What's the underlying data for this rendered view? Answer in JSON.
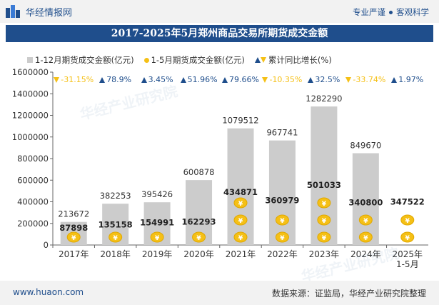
{
  "header": {
    "brand": "华经情报网",
    "tagline_left": "专业严谨",
    "tagline_right": "客观科学"
  },
  "chart_data": {
    "type": "bar",
    "title": "2017-2025年5月郑州商品交易所期货成交金额",
    "categories": [
      "2017年",
      "2018年",
      "2019年",
      "2020年",
      "2021年",
      "2022年",
      "2023年",
      "2024年",
      "2025年\n1-5月"
    ],
    "series": [
      {
        "name": "1-12月期货成交金额(亿元)",
        "color": "#cccccc",
        "values": [
          213672,
          382253,
          395426,
          600878,
          1079512,
          967741,
          1282290,
          849670,
          null
        ]
      },
      {
        "name": "1-5月期货成交金额(亿元)",
        "color": "#f5c016",
        "values": [
          87898,
          135158,
          154991,
          162293,
          434871,
          360979,
          501033,
          340800,
          347522
        ]
      },
      {
        "name": "累计同比增长(%)",
        "values": [
          -31.15,
          78.9,
          3.45,
          51.96,
          79.66,
          -10.35,
          32.5,
          -33.74,
          1.97
        ]
      }
    ],
    "y_axis": {
      "min": 0,
      "max": 1600000,
      "ticks": [
        0,
        200000,
        400000,
        600000,
        800000,
        1000000,
        1200000,
        1400000,
        1600000
      ]
    },
    "legend_position": "top",
    "grid": false
  },
  "growth_labels": [
    "-31.15%",
    "78.9%",
    "3.45%",
    "51.96%",
    "79.66%",
    "-10.35%",
    "32.5%",
    "-33.74%",
    "1.97%"
  ],
  "colors": {
    "accent": "#1f4e8c",
    "gold": "#f5c016",
    "bar": "#cccccc"
  },
  "footer": {
    "site": "www.huaon.com",
    "source": "数据来源：证监局，华经产业研究院整理"
  },
  "watermark": {
    "text": "华经产业研究院",
    "url": "www.huaon.com"
  }
}
